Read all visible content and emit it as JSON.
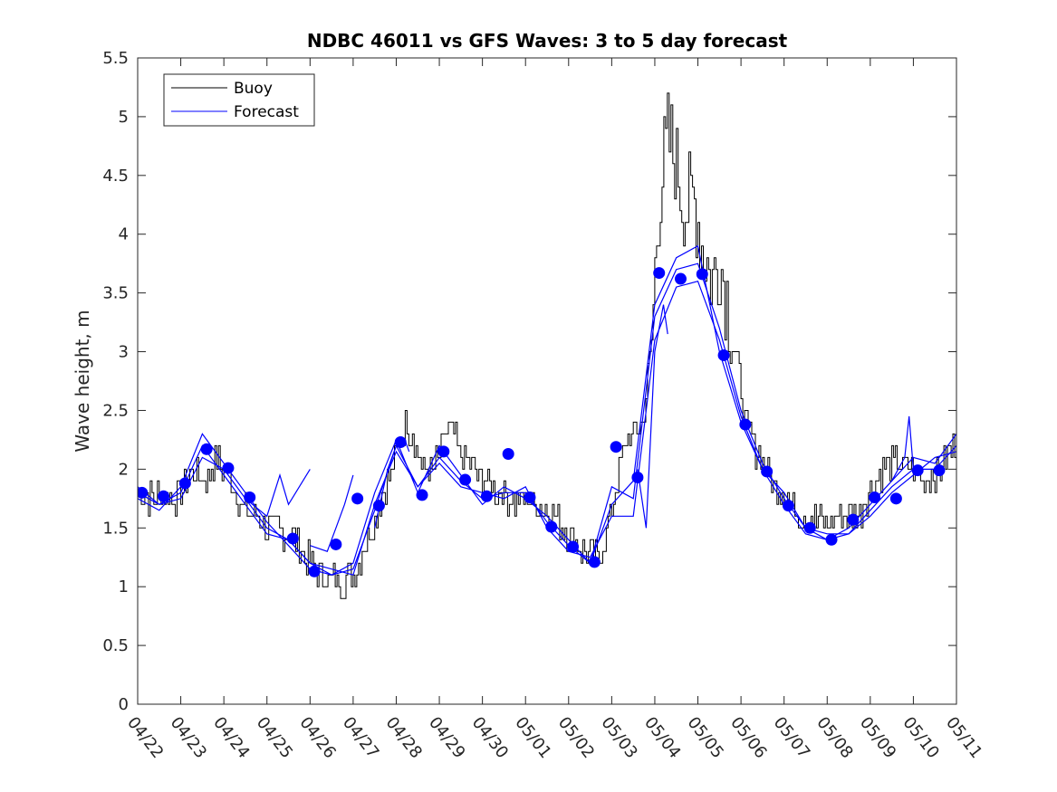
{
  "chart_data": {
    "type": "line",
    "title": "NDBC 46011 vs GFS Waves: 3 to 5 day forecast",
    "xlabel": "",
    "ylabel": "Wave height, m",
    "xlim": [
      0,
      19
    ],
    "ylim": [
      0,
      5.5
    ],
    "x_ticks": [
      "04/22",
      "04/23",
      "04/24",
      "04/25",
      "04/26",
      "04/27",
      "04/28",
      "04/29",
      "04/30",
      "05/01",
      "05/02",
      "05/03",
      "05/04",
      "05/05",
      "05/06",
      "05/07",
      "05/08",
      "05/09",
      "05/10",
      "05/11"
    ],
    "y_ticks": [
      "0",
      "0.5",
      "1",
      "1.5",
      "2",
      "2.5",
      "3",
      "3.5",
      "4",
      "4.5",
      "5",
      "5.5"
    ],
    "grid": false,
    "legend": {
      "position": "top-left",
      "entries": [
        "Buoy",
        "Forecast"
      ]
    },
    "colors": {
      "buoy": "#000000",
      "forecast": "#0000ff",
      "axes": "#262626"
    },
    "buoy_anchor_series": [
      [
        0,
        1.8
      ],
      [
        0.3,
        1.75
      ],
      [
        0.5,
        1.8
      ],
      [
        0.8,
        1.75
      ],
      [
        1.0,
        1.8
      ],
      [
        1.3,
        2.0
      ],
      [
        1.6,
        1.9
      ],
      [
        1.8,
        2.1
      ],
      [
        2.0,
        2.0
      ],
      [
        2.2,
        1.9
      ],
      [
        2.4,
        1.7
      ],
      [
        2.6,
        1.6
      ],
      [
        2.8,
        1.6
      ],
      [
        3.0,
        1.5
      ],
      [
        3.3,
        1.5
      ],
      [
        3.6,
        1.4
      ],
      [
        3.8,
        1.3
      ],
      [
        4.0,
        1.2
      ],
      [
        4.3,
        1.1
      ],
      [
        4.5,
        1.05
      ],
      [
        4.8,
        1.05
      ],
      [
        5.0,
        1.1
      ],
      [
        5.2,
        1.3
      ],
      [
        5.4,
        1.5
      ],
      [
        5.6,
        1.7
      ],
      [
        5.8,
        1.9
      ],
      [
        6.0,
        2.1
      ],
      [
        6.2,
        2.4
      ],
      [
        6.4,
        2.3
      ],
      [
        6.6,
        2.0
      ],
      [
        6.8,
        1.95
      ],
      [
        7.0,
        2.1
      ],
      [
        7.2,
        2.4
      ],
      [
        7.5,
        2.1
      ],
      [
        7.8,
        2.0
      ],
      [
        8.0,
        1.9
      ],
      [
        8.2,
        1.85
      ],
      [
        8.5,
        1.8
      ],
      [
        8.8,
        1.7
      ],
      [
        9.0,
        1.75
      ],
      [
        9.3,
        1.7
      ],
      [
        9.6,
        1.6
      ],
      [
        9.9,
        1.5
      ],
      [
        10.2,
        1.35
      ],
      [
        10.5,
        1.25
      ],
      [
        10.7,
        1.25
      ],
      [
        10.9,
        1.5
      ],
      [
        11.1,
        1.9
      ],
      [
        11.3,
        2.2
      ],
      [
        11.5,
        2.3
      ],
      [
        11.7,
        2.4
      ],
      [
        11.9,
        3.0
      ],
      [
        12.1,
        4.4
      ],
      [
        12.3,
        4.8
      ],
      [
        12.5,
        4.6
      ],
      [
        12.7,
        4.2
      ],
      [
        12.9,
        4.3
      ],
      [
        13.1,
        3.9
      ],
      [
        13.3,
        3.6
      ],
      [
        13.5,
        3.8
      ],
      [
        13.7,
        3.4
      ],
      [
        13.9,
        2.9
      ],
      [
        14.1,
        2.4
      ],
      [
        14.3,
        2.2
      ],
      [
        14.5,
        2.1
      ],
      [
        14.7,
        1.9
      ],
      [
        15.0,
        1.8
      ],
      [
        15.2,
        1.7
      ],
      [
        15.5,
        1.6
      ],
      [
        15.8,
        1.55
      ],
      [
        16.0,
        1.55
      ],
      [
        16.3,
        1.6
      ],
      [
        16.5,
        1.6
      ],
      [
        16.8,
        1.65
      ],
      [
        17.0,
        1.85
      ],
      [
        17.3,
        2.0
      ],
      [
        17.6,
        2.05
      ],
      [
        17.9,
        2.0
      ],
      [
        18.2,
        1.9
      ],
      [
        18.6,
        2.0
      ],
      [
        19.0,
        2.2
      ]
    ],
    "forecast_series": [
      {
        "x": [
          0,
          0.5,
          1,
          1.5,
          2,
          2.5,
          3,
          3.5,
          4,
          4.5,
          5,
          5.5,
          6,
          6.5,
          7,
          7.5,
          8,
          8.5,
          9,
          9.5,
          10,
          10.5,
          11,
          11.5,
          12,
          12.5,
          13,
          13.5,
          14,
          14.5,
          15,
          15.5,
          16,
          16.5,
          17,
          17.5,
          18,
          18.5,
          19
        ],
        "y": [
          1.8,
          1.7,
          1.75,
          2.1,
          2.0,
          1.75,
          1.5,
          1.4,
          1.2,
          1.1,
          1.15,
          1.65,
          2.2,
          1.85,
          2.1,
          1.9,
          1.75,
          1.8,
          1.8,
          1.55,
          1.35,
          1.2,
          1.85,
          1.75,
          3.3,
          3.7,
          3.75,
          3.2,
          2.5,
          2.05,
          1.75,
          1.5,
          1.4,
          1.45,
          1.65,
          1.85,
          2.0,
          2.0,
          2.2
        ]
      },
      {
        "x": [
          0,
          0.5,
          1,
          1.5,
          2,
          2.5,
          3,
          3.5,
          4,
          4.5,
          5,
          5.5,
          6,
          6.5,
          7,
          7.5,
          8,
          8.5,
          9,
          9.5,
          10,
          10.5,
          11,
          11.5,
          12,
          12.5,
          13,
          13.5,
          14,
          14.5,
          15,
          15.5,
          16,
          16.5,
          17,
          17.5,
          18,
          18.5,
          19
        ],
        "y": [
          1.75,
          1.65,
          1.85,
          2.3,
          2.05,
          1.8,
          1.55,
          1.35,
          1.15,
          1.1,
          1.2,
          1.8,
          2.25,
          1.8,
          2.2,
          1.95,
          1.7,
          1.85,
          1.75,
          1.6,
          1.4,
          1.2,
          1.7,
          1.9,
          3.4,
          3.8,
          3.9,
          3.0,
          2.4,
          2.0,
          1.7,
          1.45,
          1.4,
          1.5,
          1.7,
          1.9,
          2.1,
          2.05,
          2.3
        ]
      },
      {
        "x": [
          0,
          0.5,
          1,
          1.5,
          2,
          2.5,
          3,
          3.5,
          4,
          4.5,
          5,
          5.5,
          6,
          6.5,
          7,
          7.5,
          8,
          8.5,
          9,
          9.5,
          10,
          10.5,
          11,
          11.5,
          12,
          12.5,
          13,
          13.5,
          14,
          14.5,
          15,
          15.5,
          16,
          16.5,
          17,
          17.5,
          18,
          18.5,
          19
        ],
        "y": [
          1.85,
          1.7,
          1.8,
          2.2,
          1.95,
          1.7,
          1.45,
          1.4,
          1.2,
          1.15,
          1.1,
          1.7,
          2.15,
          1.85,
          2.05,
          1.85,
          1.8,
          1.75,
          1.85,
          1.5,
          1.3,
          1.25,
          1.6,
          1.6,
          3.1,
          3.55,
          3.6,
          3.1,
          2.45,
          2.0,
          1.8,
          1.5,
          1.45,
          1.45,
          1.6,
          1.8,
          1.95,
          2.1,
          2.15
        ]
      },
      {
        "x": [
          2.5,
          3,
          3.3,
          3.5,
          4.0
        ],
        "y": [
          1.75,
          1.6,
          1.95,
          1.7,
          2.0
        ]
      },
      {
        "x": [
          4.0,
          4.4,
          4.6,
          4.8,
          5.0
        ],
        "y": [
          1.35,
          1.3,
          1.5,
          1.7,
          1.95
        ]
      },
      {
        "x": [
          5.5,
          5.8,
          6.0,
          6.2,
          6.3
        ],
        "y": [
          1.5,
          2.0,
          2.2,
          2.25,
          2.15
        ]
      },
      {
        "x": [
          11.6,
          11.8,
          12.0,
          12.2,
          12.3
        ],
        "y": [
          2.0,
          1.5,
          3.0,
          3.4,
          3.15
        ]
      },
      {
        "x": [
          17.5,
          17.8,
          17.9,
          18.0
        ],
        "y": [
          1.9,
          2.1,
          2.45,
          2.0
        ]
      }
    ],
    "markers": {
      "x": [
        0.1,
        0.6,
        1.1,
        1.6,
        2.1,
        2.6,
        3.6,
        4.1,
        4.6,
        5.1,
        5.6,
        6.1,
        6.6,
        7.1,
        7.6,
        8.1,
        8.6,
        9.1,
        9.6,
        10.1,
        10.6,
        11.1,
        11.6,
        12.1,
        12.6,
        13.1,
        13.6,
        14.1,
        14.6,
        15.1,
        15.6,
        16.1,
        16.6,
        17.1,
        17.6,
        18.1,
        18.6
      ],
      "y": [
        1.8,
        1.77,
        1.88,
        2.17,
        2.01,
        1.76,
        1.41,
        1.13,
        1.36,
        1.75,
        1.69,
        2.23,
        1.78,
        2.15,
        1.91,
        1.77,
        2.13,
        1.76,
        1.51,
        1.34,
        1.21,
        2.19,
        1.93,
        3.67,
        3.62,
        3.66,
        2.97,
        2.38,
        1.98,
        1.69,
        1.5,
        1.4,
        1.57,
        1.76,
        1.75,
        1.99,
        1.99
      ]
    }
  }
}
